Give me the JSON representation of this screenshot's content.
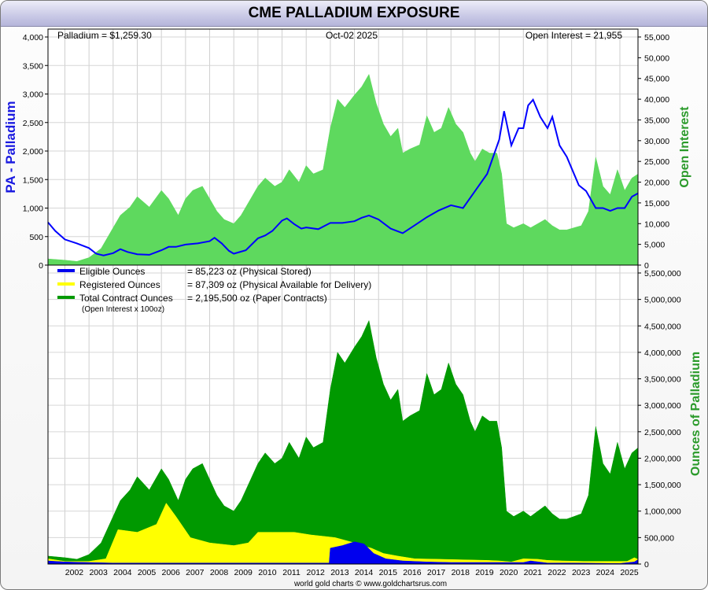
{
  "page": {
    "title": "CME PALLADIUM EXPOSURE",
    "footer": "world gold charts © www.goldchartsrus.com"
  },
  "top_panel": {
    "price_label": "Palladium = $1,259.30",
    "date_label": "Oct-02  2025",
    "oi_label": "Open Interest = 21,955",
    "left_axis_title": "PA - Palladium",
    "right_axis_title": "Open Interest",
    "left_ticks": [
      "0",
      "500",
      "1,000",
      "1,500",
      "2,000",
      "2,500",
      "3,000",
      "3,500",
      "4,000"
    ],
    "right_ticks": [
      "0",
      "5,000",
      "10,000",
      "15,000",
      "20,000",
      "25,000",
      "30,000",
      "35,000",
      "40,000",
      "45,000",
      "50,000",
      "55,000"
    ]
  },
  "bottom_panel": {
    "right_axis_title": "Ounces of Palladium",
    "right_ticks": [
      "0",
      "500,000",
      "1,000,000",
      "1,500,000",
      "2,000,000",
      "2,500,000",
      "3,000,000",
      "3,500,000",
      "4,000,000",
      "4,500,000",
      "5,000,000",
      "5,500,000"
    ],
    "legend": [
      {
        "label": "Eligible Ounces",
        "value": "= 85,223 oz (Physical Stored)",
        "color": "#0000ee"
      },
      {
        "label": "Registered Ounces",
        "value": "= 87,309 oz (Physical Available for Delivery)",
        "color": "#ffff00"
      },
      {
        "label": "Total Contract Ounces",
        "value": "= 2,195,500 oz (Paper Contracts)",
        "color": "#009900"
      }
    ],
    "legend_note": "(Open Interest x 100oz)"
  },
  "x_axis": {
    "ticks": [
      "2002",
      "2003",
      "2004",
      "2005",
      "2006",
      "2007",
      "2008",
      "2009",
      "2010",
      "2011",
      "2012",
      "2013",
      "2014",
      "2015",
      "2016",
      "2017",
      "2018",
      "2019",
      "2020",
      "2021",
      "2022",
      "2023",
      "2024",
      "2025"
    ]
  },
  "chart_data": [
    {
      "type": "line",
      "title": "CME PALLADIUM EXPOSURE",
      "x_range": [
        2001.3,
        2025.75
      ],
      "series": [
        {
          "name": "Palladium",
          "axis": "left",
          "color": "#0000ff",
          "ylim": [
            0,
            4000
          ],
          "x": [
            2001.3,
            2001.6,
            2002.0,
            2002.5,
            2003.0,
            2003.3,
            2003.6,
            2004.0,
            2004.3,
            2004.6,
            2005.0,
            2005.5,
            2006.0,
            2006.3,
            2006.6,
            2007.0,
            2007.5,
            2008.0,
            2008.2,
            2008.5,
            2008.8,
            2009.0,
            2009.5,
            2010.0,
            2010.3,
            2010.6,
            2011.0,
            2011.2,
            2011.5,
            2011.8,
            2012.0,
            2012.5,
            2013.0,
            2013.5,
            2014.0,
            2014.3,
            2014.6,
            2015.0,
            2015.5,
            2016.0,
            2016.5,
            2017.0,
            2017.5,
            2018.0,
            2018.5,
            2019.0,
            2019.5,
            2020.0,
            2020.2,
            2020.5,
            2020.8,
            2021.0,
            2021.2,
            2021.4,
            2021.7,
            2022.0,
            2022.2,
            2022.5,
            2022.8,
            2023.0,
            2023.3,
            2023.6,
            2024.0,
            2024.3,
            2024.6,
            2024.9,
            2025.2,
            2025.5,
            2025.75
          ],
          "y": [
            750,
            600,
            450,
            380,
            300,
            200,
            170,
            210,
            280,
            230,
            190,
            180,
            260,
            320,
            320,
            360,
            380,
            420,
            480,
            380,
            250,
            200,
            260,
            470,
            520,
            600,
            780,
            820,
            720,
            640,
            660,
            630,
            740,
            740,
            770,
            830,
            870,
            800,
            640,
            560,
            700,
            840,
            960,
            1050,
            1000,
            1300,
            1600,
            2200,
            2700,
            2100,
            2400,
            2400,
            2800,
            2900,
            2600,
            2400,
            2600,
            2100,
            1900,
            1700,
            1400,
            1300,
            1000,
            1000,
            950,
            1000,
            1000,
            1200,
            1260
          ]
        },
        {
          "name": "Open Interest",
          "axis": "right",
          "color": "#5ed95e",
          "ylim": [
            0,
            55000
          ],
          "x": [
            2001.3,
            2002.0,
            2002.5,
            2003.0,
            2003.5,
            2004.0,
            2004.3,
            2004.7,
            2005.0,
            2005.5,
            2006.0,
            2006.3,
            2006.7,
            2007.0,
            2007.3,
            2007.7,
            2008.0,
            2008.3,
            2008.6,
            2009.0,
            2009.3,
            2009.7,
            2010.0,
            2010.3,
            2010.7,
            2011.0,
            2011.3,
            2011.7,
            2012.0,
            2012.3,
            2012.7,
            2013.0,
            2013.3,
            2013.6,
            2014.0,
            2014.3,
            2014.6,
            2014.9,
            2015.2,
            2015.5,
            2015.8,
            2016.0,
            2016.3,
            2016.7,
            2017.0,
            2017.3,
            2017.6,
            2017.9,
            2018.2,
            2018.5,
            2018.8,
            2019.0,
            2019.3,
            2019.6,
            2019.9,
            2020.1,
            2020.3,
            2020.6,
            2021.0,
            2021.3,
            2021.6,
            2021.9,
            2022.2,
            2022.5,
            2022.8,
            2023.1,
            2023.4,
            2023.7,
            2024.0,
            2024.3,
            2024.6,
            2024.9,
            2025.2,
            2025.5,
            2025.75
          ],
          "y": [
            1500,
            1200,
            900,
            1800,
            4000,
            9000,
            12000,
            14000,
            16500,
            14000,
            18000,
            16000,
            12000,
            16000,
            18000,
            19000,
            16000,
            13000,
            11000,
            10000,
            12000,
            16000,
            19000,
            21000,
            19000,
            20000,
            23000,
            20000,
            24000,
            22000,
            23000,
            33000,
            40000,
            38000,
            41000,
            43000,
            46000,
            39000,
            34000,
            31000,
            33000,
            27000,
            28000,
            29000,
            36000,
            32000,
            33000,
            38000,
            34000,
            32000,
            27000,
            25000,
            28000,
            27000,
            27000,
            22000,
            10000,
            9000,
            10000,
            9000,
            10000,
            11000,
            9500,
            8500,
            8500,
            9000,
            9500,
            13000,
            26000,
            19000,
            17000,
            23000,
            18000,
            21000,
            21955
          ]
        }
      ]
    },
    {
      "type": "area",
      "x_range": [
        2001.3,
        2025.75
      ],
      "ylim": [
        0,
        5500000
      ],
      "series": [
        {
          "name": "Total Contract Ounces",
          "color": "#009900",
          "x": [
            2001.3,
            2002.0,
            2002.5,
            2003.0,
            2003.5,
            2004.0,
            2004.3,
            2004.7,
            2005.0,
            2005.5,
            2006.0,
            2006.3,
            2006.7,
            2007.0,
            2007.3,
            2007.7,
            2008.0,
            2008.3,
            2008.6,
            2009.0,
            2009.3,
            2009.7,
            2010.0,
            2010.3,
            2010.7,
            2011.0,
            2011.3,
            2011.7,
            2012.0,
            2012.3,
            2012.7,
            2013.0,
            2013.3,
            2013.6,
            2014.0,
            2014.3,
            2014.6,
            2014.9,
            2015.2,
            2015.5,
            2015.8,
            2016.0,
            2016.3,
            2016.7,
            2017.0,
            2017.3,
            2017.6,
            2017.9,
            2018.2,
            2018.5,
            2018.8,
            2019.0,
            2019.3,
            2019.6,
            2019.9,
            2020.1,
            2020.3,
            2020.6,
            2021.0,
            2021.3,
            2021.6,
            2021.9,
            2022.2,
            2022.5,
            2022.8,
            2023.1,
            2023.4,
            2023.7,
            2024.0,
            2024.3,
            2024.6,
            2024.9,
            2025.2,
            2025.5,
            2025.75
          ],
          "values": [
            150000,
            120000,
            90000,
            180000,
            400000,
            900000,
            1200000,
            1400000,
            1650000,
            1400000,
            1800000,
            1600000,
            1200000,
            1600000,
            1800000,
            1900000,
            1600000,
            1300000,
            1100000,
            1000000,
            1200000,
            1600000,
            1900000,
            2100000,
            1900000,
            2000000,
            2300000,
            2000000,
            2400000,
            2200000,
            2300000,
            3300000,
            4000000,
            3800000,
            4100000,
            4300000,
            4600000,
            3900000,
            3400000,
            3100000,
            3300000,
            2700000,
            2800000,
            2900000,
            3600000,
            3200000,
            3300000,
            3800000,
            3400000,
            3200000,
            2700000,
            2500000,
            2800000,
            2700000,
            2700000,
            2200000,
            1000000,
            900000,
            1000000,
            900000,
            1000000,
            1100000,
            950000,
            850000,
            850000,
            900000,
            950000,
            1300000,
            2600000,
            1900000,
            1700000,
            2300000,
            1800000,
            2100000,
            2195500
          ]
        },
        {
          "name": "Registered Ounces",
          "color": "#ffff00",
          "x": [
            2001.3,
            2002.0,
            2003.0,
            2003.7,
            2004.2,
            2005.0,
            2005.8,
            2006.2,
            2006.6,
            2007.2,
            2008.0,
            2009.0,
            2009.6,
            2010.0,
            2010.6,
            2011.5,
            2012.2,
            2012.8,
            2013.2,
            2013.6,
            2014.0,
            2014.3,
            2014.7,
            2015.2,
            2015.8,
            2016.5,
            2017.5,
            2018.5,
            2019.5,
            2020.0,
            2020.5,
            2021.0,
            2021.6,
            2022.0,
            2022.6,
            2023.5,
            2024.5,
            2025.3,
            2025.6,
            2025.75
          ],
          "values": [
            100000,
            50000,
            50000,
            100000,
            650000,
            600000,
            750000,
            1150000,
            900000,
            500000,
            400000,
            350000,
            400000,
            600000,
            600000,
            600000,
            550000,
            520000,
            500000,
            450000,
            400000,
            350000,
            300000,
            200000,
            150000,
            100000,
            90000,
            80000,
            70000,
            60000,
            40000,
            100000,
            90000,
            70000,
            60000,
            50000,
            50000,
            50000,
            120000,
            87309
          ]
        },
        {
          "name": "Eligible Ounces",
          "color": "#0000ee",
          "x": [
            2001.3,
            2002.0,
            2003.0,
            2004.0,
            2006.0,
            2008.0,
            2012.5,
            2012.95,
            2013.0,
            2013.5,
            2014.0,
            2014.4,
            2014.8,
            2015.3,
            2016.0,
            2017.0,
            2018.0,
            2019.0,
            2020.0,
            2021.0,
            2021.3,
            2022.0,
            2023.0,
            2024.0,
            2025.0,
            2025.6,
            2025.75
          ],
          "values": [
            60000,
            40000,
            30000,
            20000,
            20000,
            20000,
            20000,
            20000,
            300000,
            350000,
            420000,
            380000,
            200000,
            100000,
            60000,
            40000,
            30000,
            30000,
            30000,
            30000,
            60000,
            20000,
            20000,
            15000,
            10000,
            40000,
            85223
          ]
        }
      ],
      "legend_position": "top-left"
    }
  ]
}
